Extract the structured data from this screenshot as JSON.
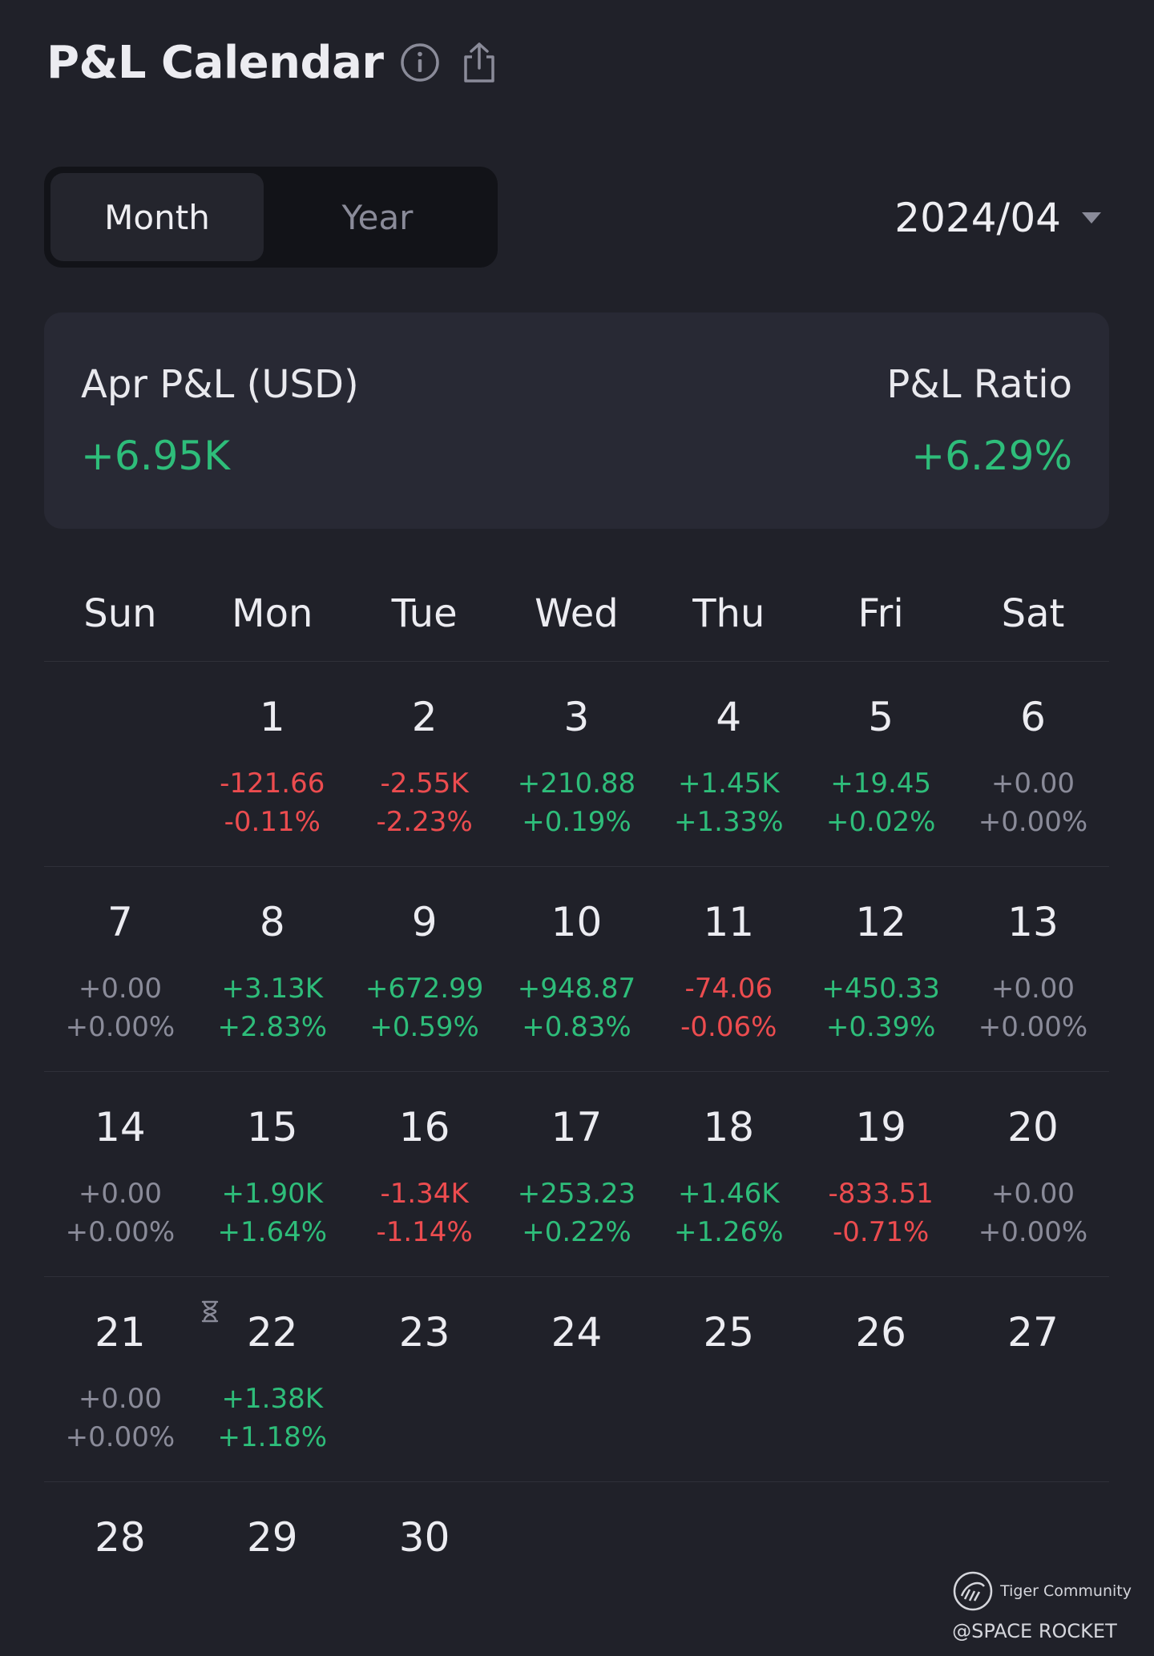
{
  "header": {
    "title": "P&L Calendar",
    "info_icon": "info-circle-icon",
    "share_icon": "share-upload-icon"
  },
  "toggle": {
    "options": [
      "Month",
      "Year"
    ],
    "selected": "Month"
  },
  "date_select": {
    "value": "2024/04",
    "icon": "caret-down-icon"
  },
  "summary": {
    "left_label": "Apr P&L (USD)",
    "left_value": "+6.95K",
    "right_label": "P&L Ratio",
    "right_value": "+6.29%"
  },
  "colors": {
    "positive": "#2ebd7a",
    "negative": "#ec4c4f",
    "neutral": "#8a8b99",
    "background": "#202129"
  },
  "calendar": {
    "weekdays": [
      "Sun",
      "Mon",
      "Tue",
      "Wed",
      "Thu",
      "Fri",
      "Sat"
    ],
    "weeks": [
      [
        {
          "day": "",
          "pnl": "",
          "pct": "",
          "tone": ""
        },
        {
          "day": "1",
          "pnl": "-121.66",
          "pct": "-0.11%",
          "tone": "neg"
        },
        {
          "day": "2",
          "pnl": "-2.55K",
          "pct": "-2.23%",
          "tone": "neg"
        },
        {
          "day": "3",
          "pnl": "+210.88",
          "pct": "+0.19%",
          "tone": "pos"
        },
        {
          "day": "4",
          "pnl": "+1.45K",
          "pct": "+1.33%",
          "tone": "pos"
        },
        {
          "day": "5",
          "pnl": "+19.45",
          "pct": "+0.02%",
          "tone": "pos"
        },
        {
          "day": "6",
          "pnl": "+0.00",
          "pct": "+0.00%",
          "tone": "zero"
        }
      ],
      [
        {
          "day": "7",
          "pnl": "+0.00",
          "pct": "+0.00%",
          "tone": "zero"
        },
        {
          "day": "8",
          "pnl": "+3.13K",
          "pct": "+2.83%",
          "tone": "pos"
        },
        {
          "day": "9",
          "pnl": "+672.99",
          "pct": "+0.59%",
          "tone": "pos"
        },
        {
          "day": "10",
          "pnl": "+948.87",
          "pct": "+0.83%",
          "tone": "pos"
        },
        {
          "day": "11",
          "pnl": "-74.06",
          "pct": "-0.06%",
          "tone": "neg"
        },
        {
          "day": "12",
          "pnl": "+450.33",
          "pct": "+0.39%",
          "tone": "pos"
        },
        {
          "day": "13",
          "pnl": "+0.00",
          "pct": "+0.00%",
          "tone": "zero"
        }
      ],
      [
        {
          "day": "14",
          "pnl": "+0.00",
          "pct": "+0.00%",
          "tone": "zero"
        },
        {
          "day": "15",
          "pnl": "+1.90K",
          "pct": "+1.64%",
          "tone": "pos"
        },
        {
          "day": "16",
          "pnl": "-1.34K",
          "pct": "-1.14%",
          "tone": "neg"
        },
        {
          "day": "17",
          "pnl": "+253.23",
          "pct": "+0.22%",
          "tone": "pos"
        },
        {
          "day": "18",
          "pnl": "+1.46K",
          "pct": "+1.26%",
          "tone": "pos"
        },
        {
          "day": "19",
          "pnl": "-833.51",
          "pct": "-0.71%",
          "tone": "neg"
        },
        {
          "day": "20",
          "pnl": "+0.00",
          "pct": "+0.00%",
          "tone": "zero"
        }
      ],
      [
        {
          "day": "21",
          "pnl": "+0.00",
          "pct": "+0.00%",
          "tone": "zero"
        },
        {
          "day": "22",
          "pnl": "+1.38K",
          "pct": "+1.18%",
          "tone": "pos",
          "pending_icon": "hourglass-icon"
        },
        {
          "day": "23",
          "pnl": "",
          "pct": "",
          "tone": ""
        },
        {
          "day": "24",
          "pnl": "",
          "pct": "",
          "tone": ""
        },
        {
          "day": "25",
          "pnl": "",
          "pct": "",
          "tone": ""
        },
        {
          "day": "26",
          "pnl": "",
          "pct": "",
          "tone": ""
        },
        {
          "day": "27",
          "pnl": "",
          "pct": "",
          "tone": ""
        }
      ],
      [
        {
          "day": "28",
          "pnl": "",
          "pct": "",
          "tone": ""
        },
        {
          "day": "29",
          "pnl": "",
          "pct": "",
          "tone": ""
        },
        {
          "day": "30",
          "pnl": "",
          "pct": "",
          "tone": ""
        },
        {
          "day": "",
          "pnl": "",
          "pct": "",
          "tone": ""
        },
        {
          "day": "",
          "pnl": "",
          "pct": "",
          "tone": ""
        },
        {
          "day": "",
          "pnl": "",
          "pct": "",
          "tone": ""
        },
        {
          "day": "",
          "pnl": "",
          "pct": "",
          "tone": ""
        }
      ]
    ]
  },
  "watermark": {
    "icon": "tiger-community-logo-icon",
    "brand": "Tiger Community",
    "user": "@SPACE ROCKET"
  }
}
